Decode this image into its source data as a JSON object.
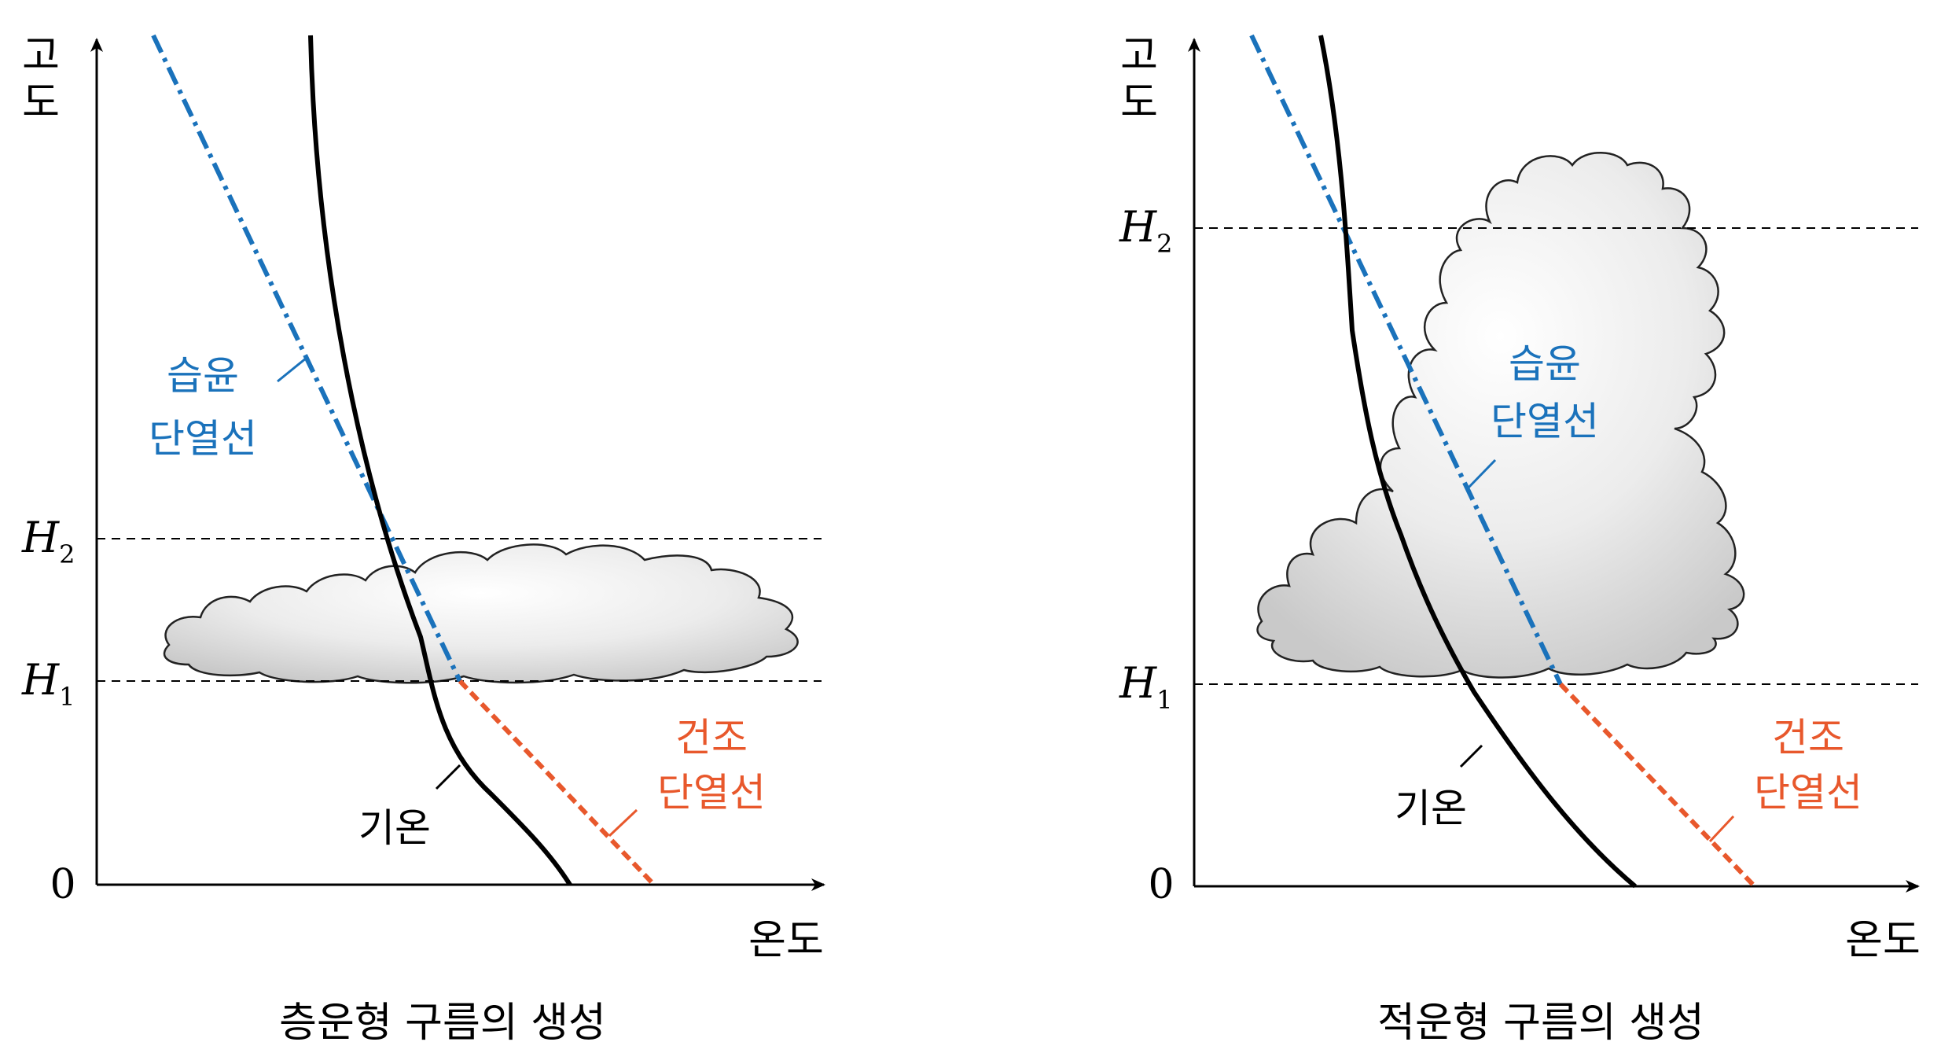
{
  "colors": {
    "temperature": "#000000",
    "moist": "#1a72bb",
    "dry": "#e8582c",
    "cloud_fill": "#f0f0f0",
    "cloud_edge": "#222222",
    "guide": "#000000"
  },
  "panels": [
    {
      "id": "stratus",
      "caption": "층운형 구름의 생성",
      "axis_y_label": [
        "고",
        "도"
      ],
      "axis_x_label": "온도",
      "origin_label": "0",
      "levels": [
        {
          "var": "H",
          "sub": "2"
        },
        {
          "var": "H",
          "sub": "1"
        }
      ],
      "labels": {
        "moist": [
          "습윤",
          "단열선"
        ],
        "dry": [
          "건조",
          "단열선"
        ],
        "temperature": "기온"
      }
    },
    {
      "id": "cumulonimbus",
      "caption": "적운형 구름의 생성",
      "axis_y_label": [
        "고",
        "도"
      ],
      "axis_x_label": "온도",
      "origin_label": "0",
      "levels": [
        {
          "var": "H",
          "sub": "2"
        },
        {
          "var": "H",
          "sub": "1"
        }
      ],
      "labels": {
        "moist": [
          "습윤",
          "단열선"
        ],
        "dry": [
          "건조",
          "단열선"
        ],
        "temperature": "기온"
      }
    }
  ]
}
